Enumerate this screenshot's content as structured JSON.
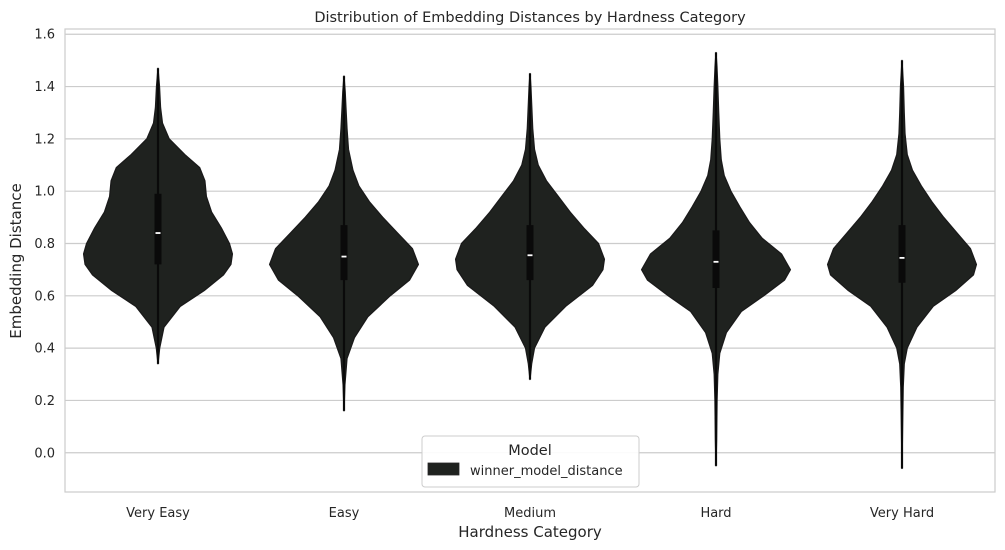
{
  "chart_data": {
    "type": "violin",
    "title": "Distribution of Embedding Distances by Hardness Category",
    "xlabel": "Hardness Category",
    "ylabel": "Embedding Distance",
    "categories": [
      "Very Easy",
      "Easy",
      "Medium",
      "Hard",
      "Very Hard"
    ],
    "ylim": [
      -0.15,
      1.62
    ],
    "yticks": [
      0.0,
      0.2,
      0.4,
      0.6,
      0.8,
      1.0,
      1.2,
      1.4,
      1.6
    ],
    "ytick_labels": [
      "0.0",
      "0.2",
      "0.4",
      "0.6",
      "0.8",
      "1.0",
      "1.2",
      "1.4",
      "1.6"
    ],
    "grid": "horizontal",
    "violin_color": "#1f221f",
    "legend": {
      "title": "Model",
      "placement": "lower-center",
      "entries": [
        {
          "label": "winner_model_distance",
          "color": "#1f221f"
        }
      ]
    },
    "series": [
      {
        "name": "winner_model_distance",
        "violins": [
          {
            "category": "Very Easy",
            "min": 0.34,
            "max": 1.47,
            "q1": 0.72,
            "median": 0.84,
            "q3": 0.99,
            "profile": [
              [
                0.34,
                0.0
              ],
              [
                0.4,
                0.022
              ],
              [
                0.48,
                0.08
              ],
              [
                0.56,
                0.3
              ],
              [
                0.62,
                0.62
              ],
              [
                0.68,
                0.88
              ],
              [
                0.72,
                0.98
              ],
              [
                0.76,
                1.0
              ],
              [
                0.8,
                0.96
              ],
              [
                0.86,
                0.85
              ],
              [
                0.92,
                0.72
              ],
              [
                0.98,
                0.65
              ],
              [
                1.04,
                0.63
              ],
              [
                1.09,
                0.56
              ],
              [
                1.14,
                0.36
              ],
              [
                1.2,
                0.15
              ],
              [
                1.26,
                0.06
              ],
              [
                1.32,
                0.034
              ],
              [
                1.4,
                0.02
              ],
              [
                1.47,
                0.0
              ]
            ]
          },
          {
            "category": "Easy",
            "min": 0.16,
            "max": 1.44,
            "q1": 0.66,
            "median": 0.75,
            "q3": 0.87,
            "profile": [
              [
                0.16,
                0.0
              ],
              [
                0.26,
                0.012
              ],
              [
                0.36,
                0.04
              ],
              [
                0.44,
                0.14
              ],
              [
                0.52,
                0.32
              ],
              [
                0.6,
                0.62
              ],
              [
                0.66,
                0.88
              ],
              [
                0.72,
                1.0
              ],
              [
                0.78,
                0.92
              ],
              [
                0.84,
                0.72
              ],
              [
                0.9,
                0.52
              ],
              [
                0.96,
                0.34
              ],
              [
                1.02,
                0.2
              ],
              [
                1.08,
                0.12
              ],
              [
                1.16,
                0.06
              ],
              [
                1.24,
                0.04
              ],
              [
                1.32,
                0.026
              ],
              [
                1.38,
                0.016
              ],
              [
                1.44,
                0.0
              ]
            ]
          },
          {
            "category": "Medium",
            "min": 0.28,
            "max": 1.45,
            "q1": 0.66,
            "median": 0.755,
            "q3": 0.87,
            "profile": [
              [
                0.28,
                0.0
              ],
              [
                0.34,
                0.022
              ],
              [
                0.4,
                0.06
              ],
              [
                0.48,
                0.2
              ],
              [
                0.56,
                0.48
              ],
              [
                0.64,
                0.84
              ],
              [
                0.7,
                0.98
              ],
              [
                0.74,
                1.0
              ],
              [
                0.8,
                0.92
              ],
              [
                0.86,
                0.72
              ],
              [
                0.92,
                0.54
              ],
              [
                0.98,
                0.38
              ],
              [
                1.04,
                0.22
              ],
              [
                1.1,
                0.11
              ],
              [
                1.16,
                0.06
              ],
              [
                1.24,
                0.036
              ],
              [
                1.32,
                0.024
              ],
              [
                1.4,
                0.012
              ],
              [
                1.45,
                0.0
              ]
            ]
          },
          {
            "category": "Hard",
            "min": -0.05,
            "max": 1.53,
            "q1": 0.63,
            "median": 0.73,
            "q3": 0.85,
            "profile": [
              [
                -0.05,
                0.0
              ],
              [
                0.05,
                0.008
              ],
              [
                0.2,
                0.014
              ],
              [
                0.3,
                0.024
              ],
              [
                0.38,
                0.05
              ],
              [
                0.46,
                0.14
              ],
              [
                0.54,
                0.34
              ],
              [
                0.6,
                0.64
              ],
              [
                0.66,
                0.92
              ],
              [
                0.7,
                1.0
              ],
              [
                0.76,
                0.88
              ],
              [
                0.82,
                0.62
              ],
              [
                0.88,
                0.45
              ],
              [
                0.94,
                0.32
              ],
              [
                1.0,
                0.2
              ],
              [
                1.06,
                0.11
              ],
              [
                1.12,
                0.07
              ],
              [
                1.2,
                0.05
              ],
              [
                1.3,
                0.036
              ],
              [
                1.4,
                0.024
              ],
              [
                1.48,
                0.012
              ],
              [
                1.53,
                0.0
              ]
            ]
          },
          {
            "category": "Very Hard",
            "min": -0.06,
            "max": 1.5,
            "q1": 0.65,
            "median": 0.745,
            "q3": 0.87,
            "profile": [
              [
                -0.06,
                0.0
              ],
              [
                0.1,
                0.008
              ],
              [
                0.25,
                0.016
              ],
              [
                0.34,
                0.03
              ],
              [
                0.4,
                0.07
              ],
              [
                0.48,
                0.2
              ],
              [
                0.56,
                0.42
              ],
              [
                0.62,
                0.72
              ],
              [
                0.68,
                0.96
              ],
              [
                0.72,
                1.0
              ],
              [
                0.78,
                0.92
              ],
              [
                0.84,
                0.74
              ],
              [
                0.9,
                0.56
              ],
              [
                0.96,
                0.4
              ],
              [
                1.02,
                0.26
              ],
              [
                1.08,
                0.14
              ],
              [
                1.14,
                0.07
              ],
              [
                1.22,
                0.04
              ],
              [
                1.3,
                0.03
              ],
              [
                1.4,
                0.02
              ],
              [
                1.5,
                0.0
              ]
            ]
          }
        ]
      }
    ]
  }
}
